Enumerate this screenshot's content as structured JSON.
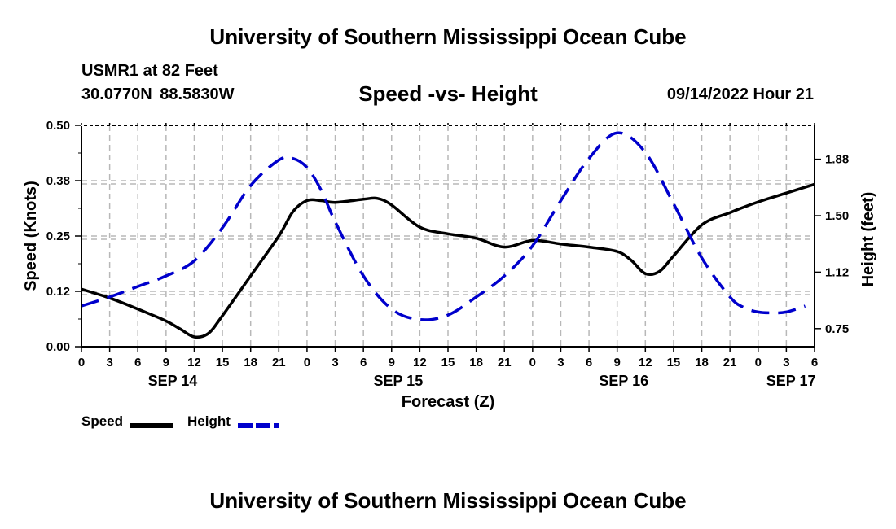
{
  "header": {
    "title": "University of Southern Mississippi Ocean Cube",
    "station": "USMR1 at 82 Feet",
    "coords": "30.0770N  88.5830W",
    "subtitle": "Speed -vs- Height",
    "datetime": "09/14/2022 Hour 21"
  },
  "footer": {
    "title": "University of Southern Mississippi Ocean Cube"
  },
  "legend": {
    "speed_label": "Speed",
    "height_label": "Height"
  },
  "chart_data": {
    "type": "line",
    "title": "Speed -vs- Height",
    "xlabel": "Forecast (Z)",
    "ylabel_left": "Speed (Knots)",
    "ylabel_right": "Height (feet)",
    "x_unit": "hours since Sep 14 00Z",
    "xlim": [
      0,
      78
    ],
    "x_ticks": [
      0,
      3,
      6,
      9,
      12,
      15,
      18,
      21,
      24,
      27,
      30,
      33,
      36,
      39,
      42,
      45,
      48,
      51,
      54,
      57,
      60,
      63,
      66,
      69,
      72,
      75,
      78
    ],
    "x_tick_labels": [
      "0",
      "3",
      "6",
      "9",
      "12",
      "15",
      "18",
      "21",
      "0",
      "3",
      "6",
      "9",
      "12",
      "15",
      "18",
      "21",
      "0",
      "3",
      "6",
      "9",
      "12",
      "15",
      "18",
      "21",
      "0",
      "3",
      "6"
    ],
    "date_labels": [
      {
        "label": "SEP 14",
        "x": 9.7
      },
      {
        "label": "SEP 15",
        "x": 33.7
      },
      {
        "label": "SEP 16",
        "x": 57.7
      },
      {
        "label": "SEP 17",
        "x": 75.5
      }
    ],
    "ylim_left": [
      0,
      0.5
    ],
    "y_ticks_left": [
      0,
      0.125,
      0.25,
      0.375,
      0.5
    ],
    "y_tick_labels_left": [
      "0.00",
      "0.12",
      "0.25",
      "0.38",
      "0.50"
    ],
    "ylim_right": [
      0.63,
      2.1
    ],
    "y_ticks_right": [
      0.75,
      1.125,
      1.5,
      1.875
    ],
    "y_tick_labels_right": [
      "0.75",
      "1.12",
      "1.50",
      "1.88"
    ],
    "grid": true,
    "series": [
      {
        "name": "Speed",
        "axis": "left",
        "color": "#000000",
        "style": "solid",
        "x": [
          0,
          3,
          6,
          9,
          10.5,
          12,
          13.5,
          15,
          18,
          21,
          22.5,
          24,
          25.5,
          27,
          30,
          31.5,
          33,
          36,
          39,
          42,
          45,
          48,
          51,
          54,
          57,
          58.5,
          60,
          61.5,
          63,
          66,
          69,
          72,
          75,
          78
        ],
        "y": [
          0.13,
          0.11,
          0.085,
          0.058,
          0.04,
          0.022,
          0.03,
          0.07,
          0.16,
          0.25,
          0.305,
          0.33,
          0.33,
          0.326,
          0.333,
          0.335,
          0.32,
          0.27,
          0.255,
          0.245,
          0.225,
          0.24,
          0.232,
          0.225,
          0.215,
          0.195,
          0.165,
          0.17,
          0.205,
          0.275,
          0.303,
          0.327,
          0.347,
          0.367
        ]
      },
      {
        "name": "Height",
        "axis": "right",
        "color": "#0000cc",
        "style": "dashed",
        "x": [
          0,
          3,
          6,
          9,
          12,
          15,
          18,
          21,
          22.5,
          24,
          25.5,
          27,
          30,
          33,
          36,
          39,
          42,
          45,
          48,
          51,
          54,
          57,
          60,
          63,
          66,
          69,
          70.5,
          72,
          73.5,
          75,
          77
        ],
        "y": [
          0.9,
          0.96,
          1.03,
          1.1,
          1.2,
          1.42,
          1.7,
          1.87,
          1.88,
          1.82,
          1.67,
          1.46,
          1.1,
          0.88,
          0.81,
          0.84,
          0.96,
          1.1,
          1.3,
          1.6,
          1.88,
          2.05,
          1.92,
          1.58,
          1.22,
          0.96,
          0.89,
          0.86,
          0.855,
          0.86,
          0.9
        ]
      }
    ]
  }
}
